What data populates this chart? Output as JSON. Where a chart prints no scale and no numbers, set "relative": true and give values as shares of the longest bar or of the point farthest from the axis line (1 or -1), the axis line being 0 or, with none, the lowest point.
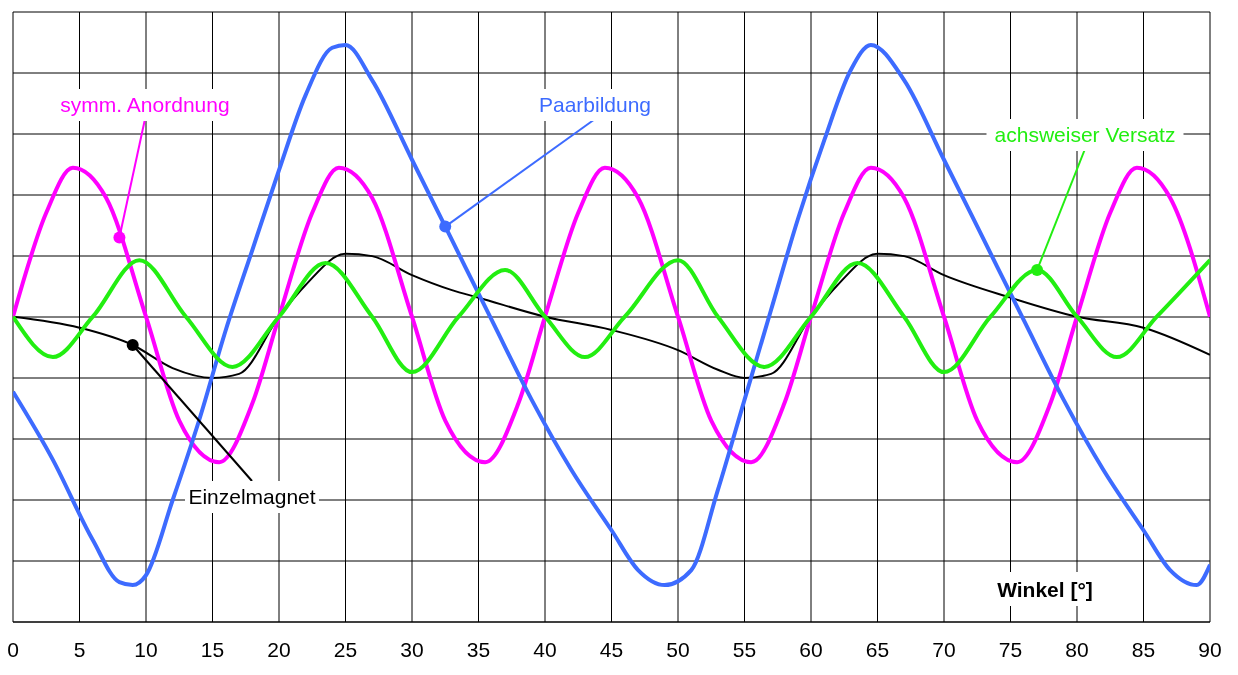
{
  "chart_data": {
    "type": "line",
    "relative": true,
    "xlabel": "Winkel [°]",
    "xlim": [
      0,
      90
    ],
    "xticks": [
      0,
      5,
      10,
      15,
      20,
      25,
      30,
      35,
      40,
      45,
      50,
      55,
      60,
      65,
      70,
      75,
      80,
      85,
      90
    ],
    "grid": true,
    "legend": false,
    "marker": "none",
    "line_style": "solid",
    "series": [
      {
        "name": "Einzelmagnet",
        "color": "#000000",
        "x": [
          0,
          5,
          9,
          12,
          15,
          17,
          20,
          22,
          25,
          27,
          30,
          33,
          35,
          40,
          45,
          50,
          53,
          55,
          57,
          60,
          62,
          65,
          67,
          70,
          75,
          80,
          85,
          90
        ],
        "values": [
          0.529,
          0.51,
          0.48,
          0.44,
          0.423,
          0.43,
          0.529,
          0.584,
          0.638,
          0.634,
          0.601,
          0.575,
          0.562,
          0.529,
          0.506,
          0.471,
          0.437,
          0.423,
          0.43,
          0.529,
          0.584,
          0.638,
          0.634,
          0.601,
          0.562,
          0.529,
          0.51,
          0.463
        ]
      },
      {
        "name": "symm. Anordnung",
        "color": "#ff00ff",
        "x": [
          0,
          2.5,
          4.5,
          7,
          10,
          12.5,
          15.5,
          18,
          20,
          22.5,
          24.5,
          27,
          30,
          32.5,
          35.5,
          38,
          40,
          42.5,
          44.5,
          47,
          50,
          52.5,
          55.5,
          58,
          60,
          62.5,
          64.5,
          67,
          70,
          72.5,
          75.5,
          78,
          80,
          82.5,
          84.5,
          87,
          90
        ],
        "values": [
          0.529,
          0.709,
          0.787,
          0.735,
          0.529,
          0.349,
          0.277,
          0.379,
          0.529,
          0.709,
          0.787,
          0.735,
          0.529,
          0.349,
          0.277,
          0.379,
          0.529,
          0.709,
          0.787,
          0.735,
          0.529,
          0.349,
          0.277,
          0.379,
          0.529,
          0.709,
          0.787,
          0.735,
          0.529,
          0.349,
          0.277,
          0.379,
          0.529,
          0.709,
          0.787,
          0.735,
          0.529
        ]
      },
      {
        "name": "Paarbildung",
        "color": "#3d6bff",
        "x": [
          0,
          3,
          6,
          8,
          9,
          10,
          12,
          14,
          16,
          18,
          20,
          22,
          24,
          25,
          27,
          30,
          33,
          36,
          39,
          42,
          45,
          47,
          49,
          51,
          53,
          55,
          57,
          59,
          61,
          63,
          64.5,
          67,
          70,
          73,
          76,
          79,
          82,
          85,
          87,
          89,
          90
        ],
        "values": [
          0.399,
          0.281,
          0.142,
          0.069,
          0.064,
          0.081,
          0.211,
          0.35,
          0.506,
          0.645,
          0.783,
          0.913,
          0.995,
          1,
          0.939,
          0.801,
          0.662,
          0.523,
          0.385,
          0.263,
          0.159,
          0.09,
          0.064,
          0.09,
          0.229,
          0.385,
          0.541,
          0.697,
          0.835,
          0.957,
          1,
          0.939,
          0.801,
          0.662,
          0.523,
          0.385,
          0.263,
          0.159,
          0.09,
          0.064,
          0.099
        ]
      },
      {
        "name": "achsweiser Versatz",
        "color": "#22ee11",
        "x": [
          0,
          3,
          6,
          9.5,
          13,
          16.5,
          20,
          23.5,
          27,
          30,
          33.5,
          37,
          40,
          43,
          46,
          50,
          53,
          56.5,
          60,
          63.5,
          67,
          70,
          73.5,
          77,
          80,
          83,
          86,
          90
        ],
        "values": [
          0.529,
          0.459,
          0.529,
          0.627,
          0.529,
          0.442,
          0.529,
          0.622,
          0.529,
          0.433,
          0.529,
          0.61,
          0.529,
          0.459,
          0.529,
          0.627,
          0.529,
          0.442,
          0.529,
          0.622,
          0.529,
          0.433,
          0.529,
          0.61,
          0.529,
          0.459,
          0.529,
          0.627
        ]
      }
    ]
  }
}
